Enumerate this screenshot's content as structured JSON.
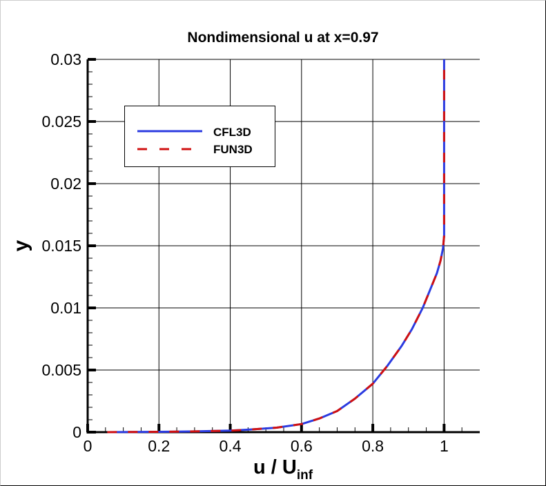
{
  "chart_data": {
    "type": "line",
    "title": "Nondimensional u at x=0.97",
    "xlabel_main": "u / U",
    "xlabel_sub": "inf",
    "ylabel": "y",
    "xlim": [
      0,
      1.1
    ],
    "ylim": [
      0,
      0.03
    ],
    "xticks": [
      0,
      0.2,
      0.4,
      0.6,
      0.8,
      1
    ],
    "xtick_labels": [
      "0",
      "0.2",
      "0.4",
      "0.6",
      "0.8",
      "1"
    ],
    "yticks": [
      0,
      0.005,
      0.01,
      0.015,
      0.02,
      0.025,
      0.03
    ],
    "ytick_labels": [
      "0",
      "0.005",
      "0.01",
      "0.015",
      "0.02",
      "0.025",
      "0.03"
    ],
    "grid": true,
    "legend_position": "upper-left",
    "series": [
      {
        "name": "CFL3D",
        "color": "#2b3be0",
        "style": "solid",
        "x": [
          0.055,
          0.2,
          0.3,
          0.4,
          0.45,
          0.5,
          0.53,
          0.6,
          0.65,
          0.7,
          0.75,
          0.8,
          0.84,
          0.88,
          0.91,
          0.94,
          0.96,
          0.98,
          0.99,
          0.997,
          1.0,
          1.0
        ],
        "y": [
          0.0,
          3e-05,
          6e-05,
          0.00012,
          0.0002,
          0.0003,
          0.00036,
          0.00065,
          0.0011,
          0.0017,
          0.0027,
          0.0039,
          0.0053,
          0.0069,
          0.0083,
          0.01,
          0.0114,
          0.0128,
          0.0138,
          0.0148,
          0.0158,
          0.03
        ]
      },
      {
        "name": "FUN3D",
        "color": "#d01010",
        "style": "dashed",
        "x": [
          0.055,
          0.2,
          0.3,
          0.4,
          0.45,
          0.5,
          0.53,
          0.6,
          0.65,
          0.7,
          0.75,
          0.8,
          0.84,
          0.88,
          0.91,
          0.94,
          0.96,
          0.98,
          0.99,
          0.997,
          1.0,
          1.0
        ],
        "y": [
          0.0,
          3e-05,
          6e-05,
          0.00012,
          0.0002,
          0.0003,
          0.00036,
          0.00065,
          0.0011,
          0.0017,
          0.0027,
          0.0039,
          0.0053,
          0.0069,
          0.0083,
          0.01,
          0.0114,
          0.0128,
          0.0138,
          0.0148,
          0.0158,
          0.03
        ]
      }
    ]
  }
}
